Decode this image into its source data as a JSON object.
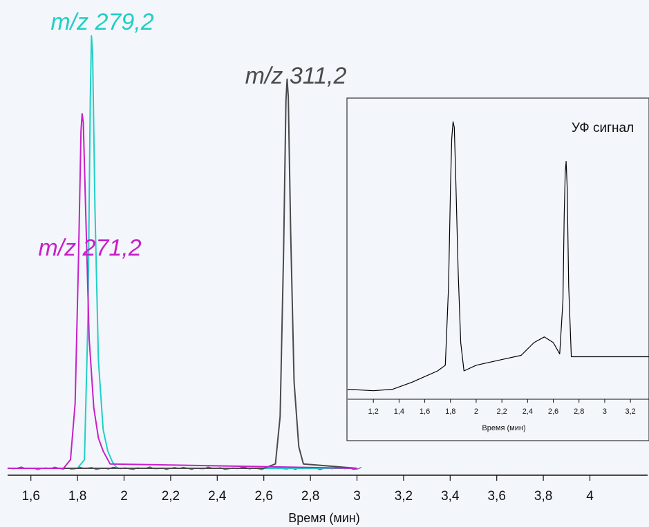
{
  "chart_data": [
    {
      "type": "line",
      "xlabel": "Время (мин)",
      "xlim": [
        1.5,
        4.25
      ],
      "x_ticks": [
        "1,6",
        "1,8",
        "2",
        "2,2",
        "2,4",
        "2,6",
        "2,8",
        "3",
        "3,2",
        "3,4",
        "3,6",
        "3,8",
        "4"
      ],
      "x_tick_values": [
        1.6,
        1.8,
        2.0,
        2.2,
        2.4,
        2.6,
        2.8,
        3.0,
        3.2,
        3.4,
        3.6,
        3.8,
        4.0
      ],
      "series": [
        {
          "name": "m/z 279,2",
          "color": "#1fcfc6",
          "x": [
            1.5,
            1.8,
            1.83,
            1.845,
            1.855,
            1.86,
            1.865,
            1.875,
            1.89,
            1.91,
            1.93,
            1.95,
            1.97,
            3.0
          ],
          "y": [
            0.0,
            0.0,
            0.02,
            0.35,
            0.85,
            1.0,
            0.96,
            0.6,
            0.25,
            0.09,
            0.04,
            0.015,
            0.0,
            0.0
          ]
        },
        {
          "name": "m/z 311,2",
          "color": "#4a4a4a",
          "x": [
            1.5,
            2.6,
            2.65,
            2.67,
            2.685,
            2.695,
            2.7,
            2.705,
            2.715,
            2.73,
            2.75,
            2.77,
            3.0
          ],
          "y": [
            0.0,
            0.0,
            0.01,
            0.12,
            0.5,
            0.85,
            0.9,
            0.86,
            0.55,
            0.2,
            0.05,
            0.01,
            0.0
          ]
        },
        {
          "name": "m/z 271,2",
          "color": "#c81fc8",
          "x": [
            1.5,
            1.74,
            1.77,
            1.79,
            1.805,
            1.815,
            1.82,
            1.825,
            1.835,
            1.85,
            1.87,
            1.89,
            1.91,
            1.94,
            3.0
          ],
          "y": [
            0.0,
            0.0,
            0.02,
            0.15,
            0.5,
            0.78,
            0.82,
            0.8,
            0.6,
            0.3,
            0.14,
            0.07,
            0.04,
            0.01,
            0.0
          ]
        }
      ],
      "annotations": [
        {
          "text": "m/z 279,2",
          "color": "#1fcfc6"
        },
        {
          "text": "m/z 311,2",
          "color": "#4a4a4a"
        },
        {
          "text": "m/z 271,2",
          "color": "#c81fc8"
        }
      ],
      "grid": false
    },
    {
      "type": "line",
      "title": "УФ сигнал",
      "xlabel": "Время (мин)",
      "xlim": [
        1.0,
        3.35
      ],
      "ylim": [
        0,
        1.0
      ],
      "x_ticks": [
        "1,2",
        "1,4",
        "1,6",
        "1,8",
        "2",
        "2,2",
        "2,4",
        "2,6",
        "2,8",
        "3",
        "3,2"
      ],
      "x_tick_values": [
        1.2,
        1.4,
        1.6,
        1.8,
        2.0,
        2.2,
        2.4,
        2.6,
        2.8,
        3.0,
        3.2
      ],
      "series": [
        {
          "name": "",
          "color": "#000000",
          "x": [
            1.0,
            1.2,
            1.35,
            1.5,
            1.6,
            1.7,
            1.76,
            1.785,
            1.8,
            1.81,
            1.82,
            1.83,
            1.84,
            1.86,
            1.88,
            1.905,
            2.0,
            2.2,
            2.35,
            2.45,
            2.53,
            2.6,
            2.65,
            2.675,
            2.685,
            2.693,
            2.7,
            2.708,
            2.72,
            2.74,
            3.0,
            3.35
          ],
          "y": [
            0.035,
            0.03,
            0.035,
            0.06,
            0.08,
            0.1,
            0.12,
            0.4,
            0.75,
            0.92,
            0.98,
            0.96,
            0.8,
            0.45,
            0.2,
            0.1,
            0.12,
            0.14,
            0.155,
            0.2,
            0.22,
            0.2,
            0.16,
            0.35,
            0.65,
            0.8,
            0.84,
            0.75,
            0.4,
            0.15,
            0.15,
            0.15
          ]
        }
      ],
      "grid": false
    }
  ]
}
